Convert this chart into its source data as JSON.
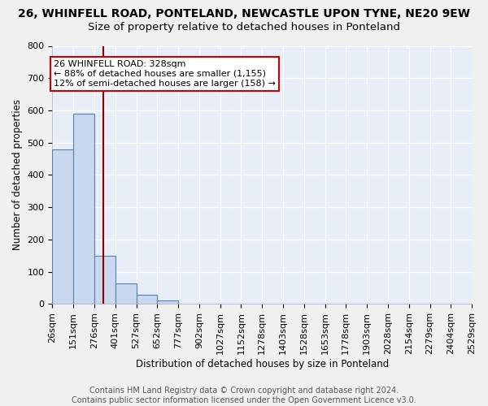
{
  "title": "26, WHINFELL ROAD, PONTELAND, NEWCASTLE UPON TYNE, NE20 9EW",
  "subtitle": "Size of property relative to detached houses in Ponteland",
  "xlabel": "Distribution of detached houses by size in Ponteland",
  "ylabel": "Number of detached properties",
  "bin_edges": [
    26,
    151,
    276,
    401,
    527,
    652,
    777,
    902,
    1027,
    1152,
    1278,
    1403,
    1528,
    1653,
    1778,
    1903,
    2028,
    2154,
    2279,
    2404,
    2529
  ],
  "bar_heights": [
    480,
    590,
    150,
    65,
    28,
    10,
    0,
    0,
    0,
    0,
    0,
    0,
    0,
    0,
    0,
    0,
    0,
    0,
    0,
    0
  ],
  "bar_color": "#c8d8ee",
  "bar_edge_color": "#5580b0",
  "property_size": 328,
  "vline_color": "#8b0000",
  "ylim": [
    0,
    800
  ],
  "yticks": [
    0,
    100,
    200,
    300,
    400,
    500,
    600,
    700,
    800
  ],
  "annotation_text": "26 WHINFELL ROAD: 328sqm\n← 88% of detached houses are smaller (1,155)\n12% of semi-detached houses are larger (158) →",
  "annotation_box_color": "#ffffff",
  "annotation_border_color": "#cc0000",
  "footer_text": "Contains HM Land Registry data © Crown copyright and database right 2024.\nContains public sector information licensed under the Open Government Licence v3.0.",
  "background_color": "#e8eef8",
  "grid_color": "#d0d8e8",
  "fig_background": "#f0f0f0",
  "title_fontsize": 10,
  "subtitle_fontsize": 9.5,
  "axis_label_fontsize": 8.5,
  "tick_fontsize": 8,
  "footer_fontsize": 7,
  "annotation_fontsize": 8
}
